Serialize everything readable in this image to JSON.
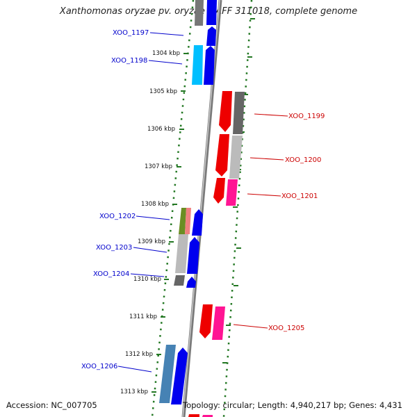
{
  "title": "Xanthomonas oryzae pv. oryzae MAFF 311018, complete genome",
  "footer": {
    "accession": "Accession: NC_007705",
    "topology": "Topology: circular; Length: 4,940,217 bp; Genes: 4,431"
  },
  "ruler": [
    "1304 kbp",
    "1305 kbp",
    "1306 kbp",
    "1307 kbp",
    "1308 kbp",
    "1309 kbp",
    "1310 kbp",
    "1311 kbp",
    "1312 kbp",
    "1313 kbp"
  ],
  "colors": {
    "blue_label": "#0000cc",
    "red_label": "#cc0000",
    "tick": "#227722",
    "backbone": "#888888"
  },
  "genes": [
    {
      "label": "XOO_1197",
      "side": "left"
    },
    {
      "label": "XOO_1198",
      "side": "left"
    },
    {
      "label": "XOO_1199",
      "side": "right"
    },
    {
      "label": "XOO_1200",
      "side": "right"
    },
    {
      "label": "XOO_1201",
      "side": "right"
    },
    {
      "label": "XOO_1202",
      "side": "left"
    },
    {
      "label": "XOO_1203",
      "side": "left"
    },
    {
      "label": "XOO_1204",
      "side": "left"
    },
    {
      "label": "XOO_1205",
      "side": "right"
    },
    {
      "label": "XOO_1206",
      "side": "left"
    }
  ]
}
